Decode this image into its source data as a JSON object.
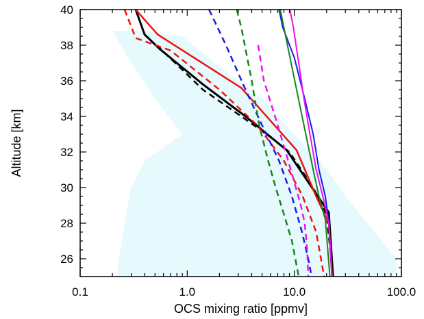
{
  "chart_data": {
    "type": "line",
    "title": "",
    "xlabel": "OCS mixing ratio [ppmv]",
    "ylabel": "Altitude [km]",
    "xscale": "log",
    "xlim": [
      0.1,
      100.0
    ],
    "ylim": [
      25,
      40
    ],
    "x_tick_labels": [
      "0.1",
      "1.0",
      "10.0",
      "100.0"
    ],
    "x_tick_values": [
      0.1,
      1.0,
      10.0,
      100.0
    ],
    "y_tick_labels": [
      "26",
      "28",
      "30",
      "32",
      "34",
      "36",
      "38",
      "40"
    ],
    "y_tick_values": [
      26,
      28,
      30,
      32,
      34,
      36,
      38,
      40
    ],
    "grid": false,
    "legend": "none",
    "shaded_range": {
      "color": "#e6f9fc",
      "left": [
        [
          0.22,
          25
        ],
        [
          0.23,
          26
        ],
        [
          0.26,
          28
        ],
        [
          0.3,
          30
        ],
        [
          0.4,
          31.5
        ],
        [
          0.9,
          33
        ],
        [
          0.5,
          35
        ],
        [
          0.3,
          37
        ],
        [
          0.2,
          38.8
        ]
      ],
      "right": [
        [
          0.4,
          38.8
        ],
        [
          0.9,
          38.5
        ],
        [
          1.8,
          37
        ],
        [
          5,
          35
        ],
        [
          10,
          33
        ],
        [
          20,
          31
        ],
        [
          30,
          29.5
        ],
        [
          90,
          26
        ],
        [
          90,
          25
        ]
      ]
    },
    "series": [
      {
        "color": "#000000",
        "dash": false,
        "width": 3,
        "points": [
          [
            0.33,
            40
          ],
          [
            0.4,
            38.6
          ],
          [
            0.55,
            37.8
          ],
          [
            1.4,
            35.8
          ],
          [
            3.5,
            34
          ],
          [
            8.5,
            32.1
          ],
          [
            21,
            28.6
          ],
          [
            23,
            25
          ]
        ]
      },
      {
        "color": "#000000",
        "dash": true,
        "width": 2.5,
        "points": [
          [
            0.52,
            38
          ],
          [
            1.4,
            35.5
          ],
          [
            3.2,
            34
          ],
          [
            5.5,
            33
          ],
          [
            9,
            32
          ],
          [
            15,
            30
          ],
          [
            20,
            28.5
          ],
          [
            23,
            25
          ]
        ]
      },
      {
        "color": "#ee1111",
        "dash": false,
        "width": 2.5,
        "points": [
          [
            0.33,
            40
          ],
          [
            0.53,
            38.6
          ],
          [
            3.2,
            35.6
          ],
          [
            10.5,
            32.1
          ],
          [
            16,
            29.5
          ],
          [
            21,
            28
          ],
          [
            22.5,
            25
          ]
        ]
      },
      {
        "color": "#ee1111",
        "dash": true,
        "width": 2.5,
        "points": [
          [
            0.26,
            40
          ],
          [
            0.33,
            38.4
          ],
          [
            0.7,
            37.7
          ],
          [
            2,
            35.5
          ],
          [
            4.5,
            33.5
          ],
          [
            8,
            31.5
          ],
          [
            12,
            29.5
          ],
          [
            16,
            27.5
          ],
          [
            19,
            25
          ]
        ]
      },
      {
        "color": "#1a1aee",
        "dash": false,
        "width": 2,
        "points": [
          [
            7.2,
            40
          ],
          [
            7.8,
            39
          ],
          [
            10,
            37.3
          ],
          [
            12.5,
            35
          ],
          [
            15,
            33
          ],
          [
            17,
            31
          ],
          [
            19.5,
            29.5
          ],
          [
            21,
            28
          ],
          [
            22.5,
            25
          ]
        ]
      },
      {
        "color": "#1a1aee",
        "dash": true,
        "width": 2.5,
        "points": [
          [
            1.6,
            40
          ],
          [
            2.3,
            38
          ],
          [
            3.5,
            35.5
          ],
          [
            5,
            33.5
          ],
          [
            7.2,
            31.5
          ],
          [
            9.5,
            29.5
          ],
          [
            11.8,
            27.5
          ],
          [
            13.5,
            26
          ],
          [
            14.5,
            25
          ]
        ]
      },
      {
        "color": "#17861a",
        "dash": false,
        "width": 2,
        "points": [
          [
            7.4,
            40
          ],
          [
            8.3,
            38.5
          ],
          [
            10.5,
            35.5
          ],
          [
            12.8,
            33
          ],
          [
            15,
            31
          ],
          [
            17,
            29.5
          ],
          [
            19.5,
            28.2
          ],
          [
            21.5,
            25
          ]
        ]
      },
      {
        "color": "#17861a",
        "dash": true,
        "width": 2.5,
        "points": [
          [
            2.9,
            40
          ],
          [
            3.2,
            39
          ],
          [
            4,
            36
          ],
          [
            4.7,
            33.5
          ],
          [
            5.7,
            31.5
          ],
          [
            6.7,
            30
          ],
          [
            8,
            28.5
          ],
          [
            9.5,
            27
          ],
          [
            11,
            25
          ]
        ]
      },
      {
        "color": "#ee11ee",
        "dash": false,
        "width": 2,
        "points": [
          [
            9.1,
            40
          ],
          [
            9.8,
            39
          ],
          [
            11,
            37
          ],
          [
            12.3,
            35
          ],
          [
            14,
            33
          ],
          [
            16,
            31
          ],
          [
            18.5,
            29.5
          ],
          [
            21,
            28
          ],
          [
            22.5,
            25
          ]
        ]
      },
      {
        "color": "#ee11ee",
        "dash": true,
        "width": 2.5,
        "points": [
          [
            4.6,
            38
          ],
          [
            5.2,
            36
          ],
          [
            6.6,
            34
          ],
          [
            8.3,
            32
          ],
          [
            9.8,
            30.5
          ],
          [
            11.5,
            29
          ],
          [
            12.5,
            28
          ],
          [
            13.2,
            26.5
          ],
          [
            13.5,
            25
          ]
        ]
      }
    ]
  }
}
